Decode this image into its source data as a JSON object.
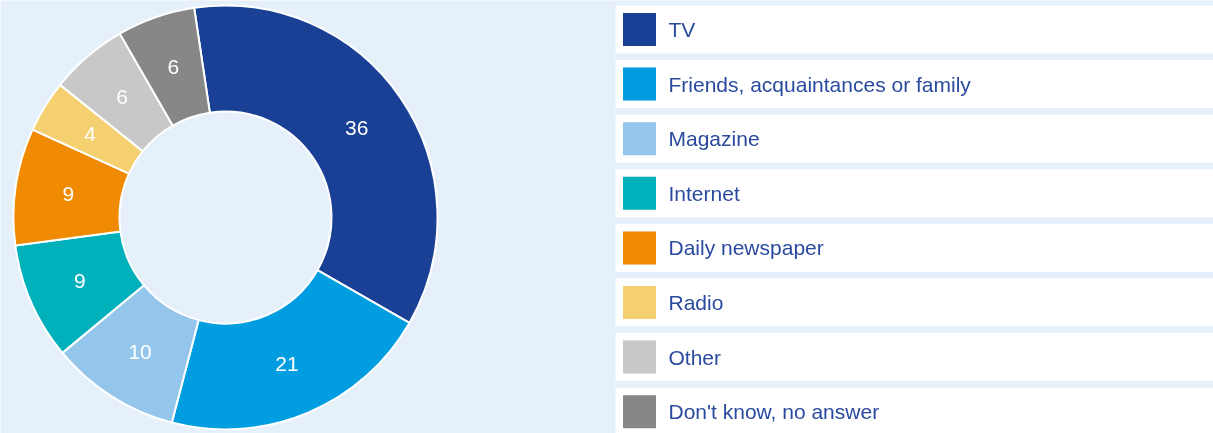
{
  "chart_data": {
    "type": "donut",
    "categories": [
      "TV",
      "Friends, acquaintances or family",
      "Magazine",
      "Internet",
      "Daily newspaper",
      "Radio",
      "Other",
      "Don't know, no answer"
    ],
    "values": [
      36,
      21,
      10,
      9,
      9,
      4,
      6,
      6
    ],
    "colors": [
      "#1a4096",
      "#009ee0",
      "#94c6ec",
      "#00b0bb",
      "#f08a00",
      "#f5d070",
      "#c8c8c8",
      "#878787"
    ],
    "data_labels": true,
    "legend": "right"
  }
}
